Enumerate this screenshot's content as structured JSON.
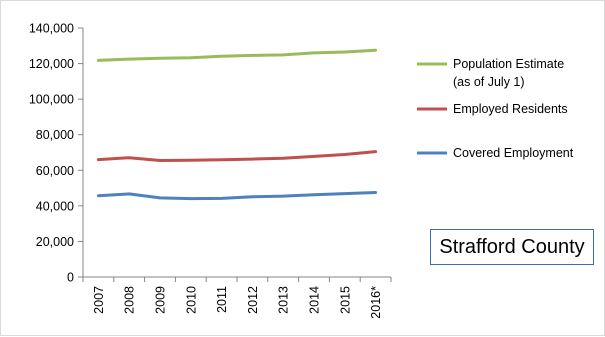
{
  "chart_data": {
    "type": "line",
    "title": "",
    "xlabel": "",
    "ylabel": "",
    "categories": [
      "2007",
      "2008",
      "2009",
      "2010",
      "2011",
      "2012",
      "2013",
      "2014",
      "2015",
      "2016*"
    ],
    "ylim": [
      0,
      140000
    ],
    "yticks": [
      0,
      20000,
      40000,
      60000,
      80000,
      100000,
      120000,
      140000
    ],
    "ytick_labels": [
      "0",
      "20,000",
      "40,000",
      "60,000",
      "80,000",
      "100,000",
      "120,000",
      "140,000"
    ],
    "grid": false,
    "legend_position": "right",
    "series": [
      {
        "name": "Population Estimate",
        "name_line2": "(as of July 1)",
        "color": "#9bbb59",
        "values": [
          121800,
          122500,
          123000,
          123300,
          124100,
          124600,
          124900,
          126000,
          126500,
          127500
        ]
      },
      {
        "name": "Employed Residents",
        "color": "#c0504d",
        "values": [
          66000,
          67100,
          65500,
          65600,
          65900,
          66300,
          66800,
          67800,
          68900,
          70500
        ]
      },
      {
        "name": "Covered Employment",
        "color": "#4f81bd",
        "values": [
          45700,
          46700,
          44500,
          44100,
          44200,
          45100,
          45500,
          46300,
          46900,
          47500
        ]
      }
    ],
    "annotation": "Strafford County"
  }
}
